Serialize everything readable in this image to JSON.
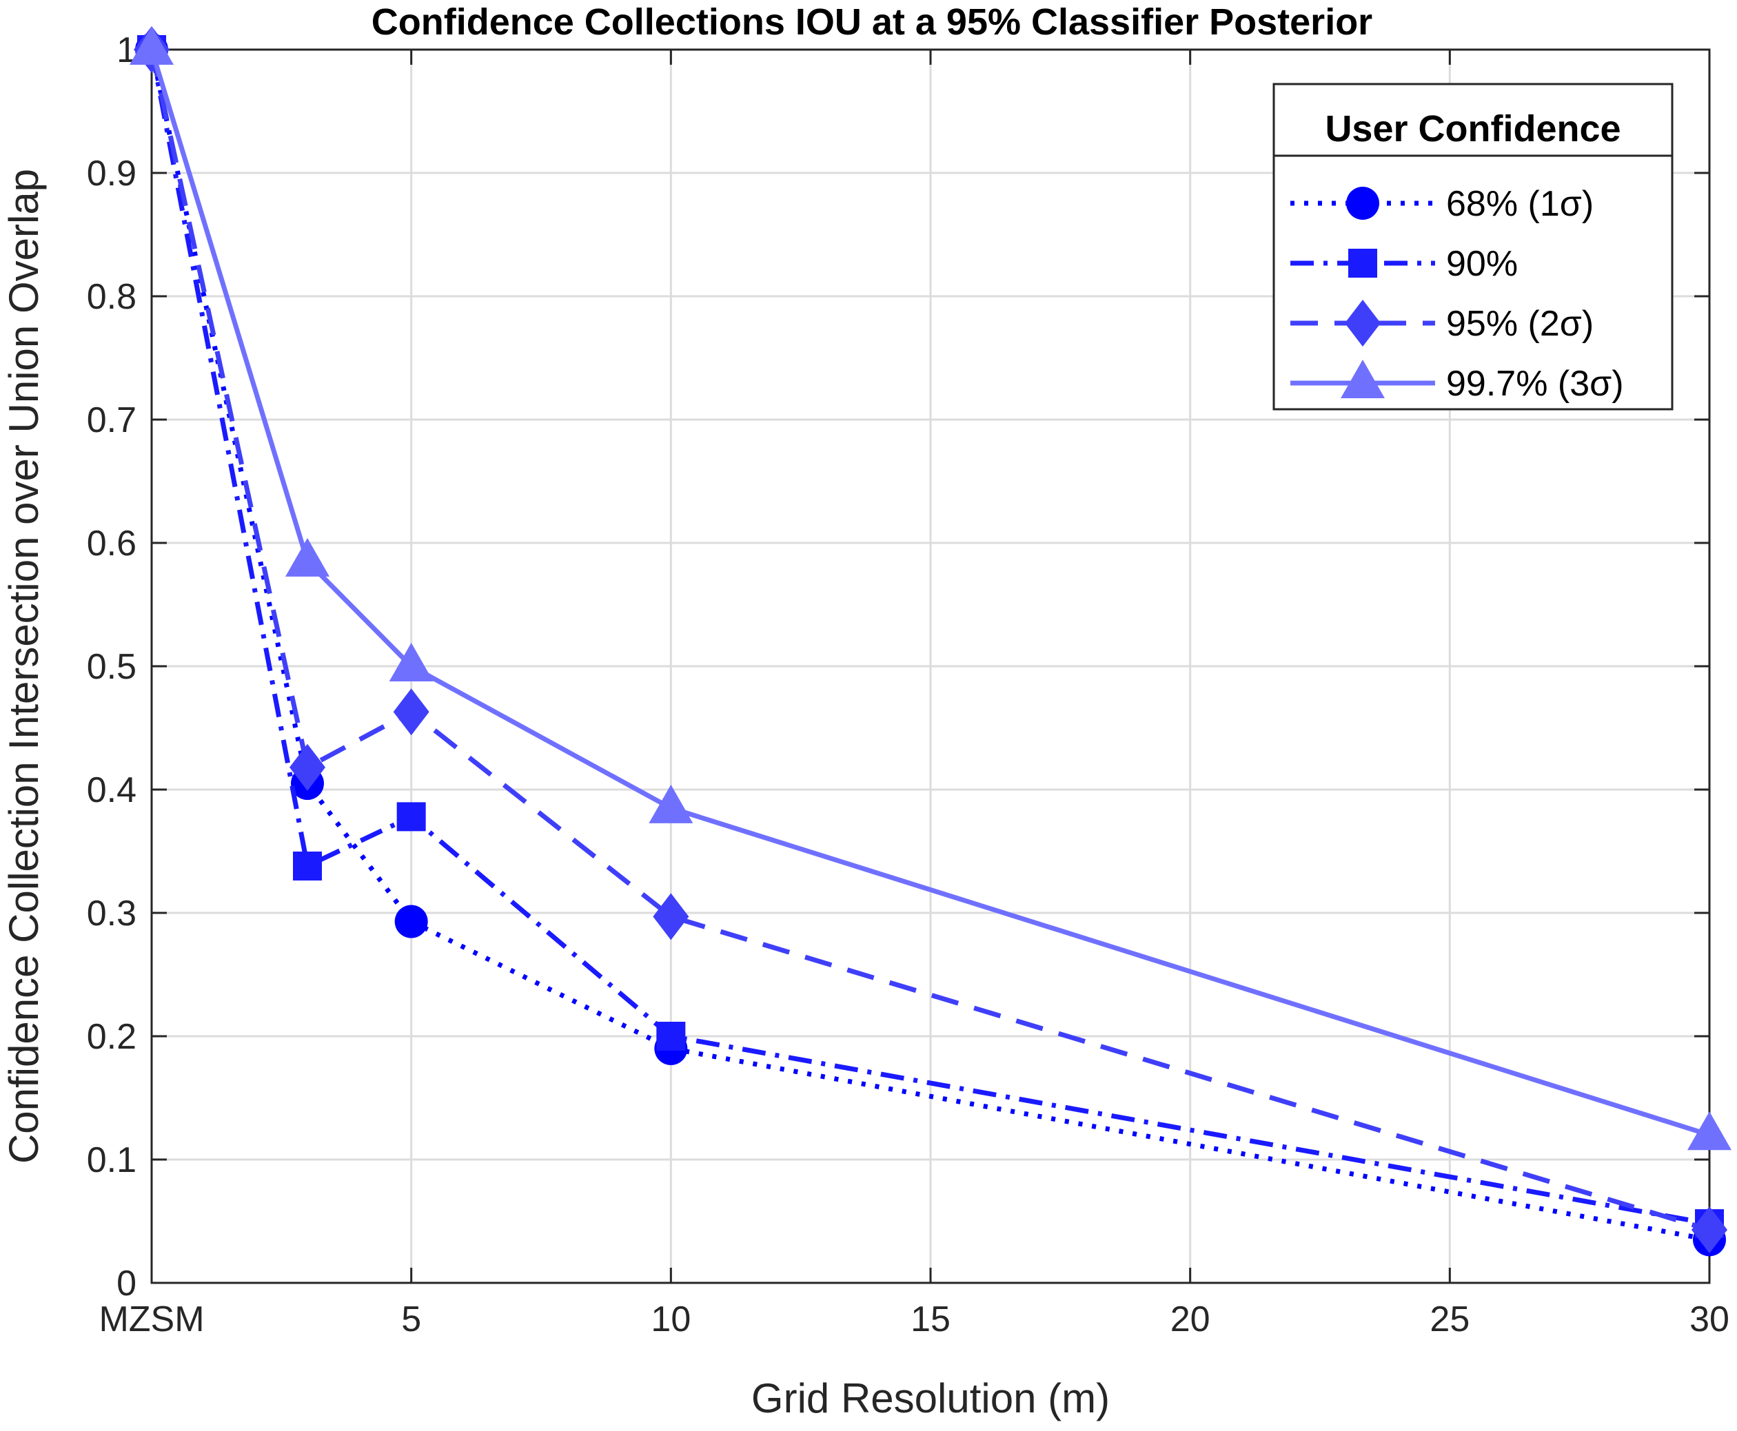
{
  "chart_data": {
    "type": "line",
    "title": "Confidence Collections IOU at a 95% Classifier Posterior",
    "xlabel": "Grid Resolution (m)",
    "ylabel": "Confidence Collection Intersection over Union Overlap",
    "xlim": [
      0,
      30
    ],
    "ylim": [
      0,
      1
    ],
    "grid": true,
    "x_ticks": [
      0,
      5,
      10,
      15,
      20,
      25,
      30
    ],
    "x_tick_labels": [
      "MZSM",
      "5",
      "10",
      "15",
      "20",
      "25",
      "30"
    ],
    "y_ticks": [
      0,
      0.1,
      0.2,
      0.3,
      0.4,
      0.5,
      0.6,
      0.7,
      0.8,
      0.9,
      1
    ],
    "y_tick_labels": [
      "0",
      "0.1",
      "0.2",
      "0.3",
      "0.4",
      "0.5",
      "0.6",
      "0.7",
      "0.8",
      "0.9",
      "1"
    ],
    "x": [
      0,
      3,
      5,
      10,
      30
    ],
    "legend": {
      "title": "User Confidence",
      "placement": "top-right"
    },
    "series": [
      {
        "name": "68% (1σ)",
        "values": [
          1.0,
          0.405,
          0.293,
          0.19,
          0.035
        ],
        "color": "#0000ff",
        "line_style": "dotted",
        "marker": "circle"
      },
      {
        "name": "90%",
        "values": [
          1.0,
          0.338,
          0.378,
          0.2,
          0.048
        ],
        "color": "#1a1aff",
        "line_style": "dashdot",
        "marker": "square"
      },
      {
        "name": "95% (2σ)",
        "values": [
          1.0,
          0.418,
          0.463,
          0.297,
          0.043
        ],
        "color": "#3f3ffa",
        "line_style": "dashed",
        "marker": "diamond"
      },
      {
        "name": "99.7% (3σ)",
        "values": [
          1.0,
          0.585,
          0.5,
          0.385,
          0.12
        ],
        "color": "#7070ff",
        "line_style": "solid",
        "marker": "triangle"
      }
    ]
  }
}
